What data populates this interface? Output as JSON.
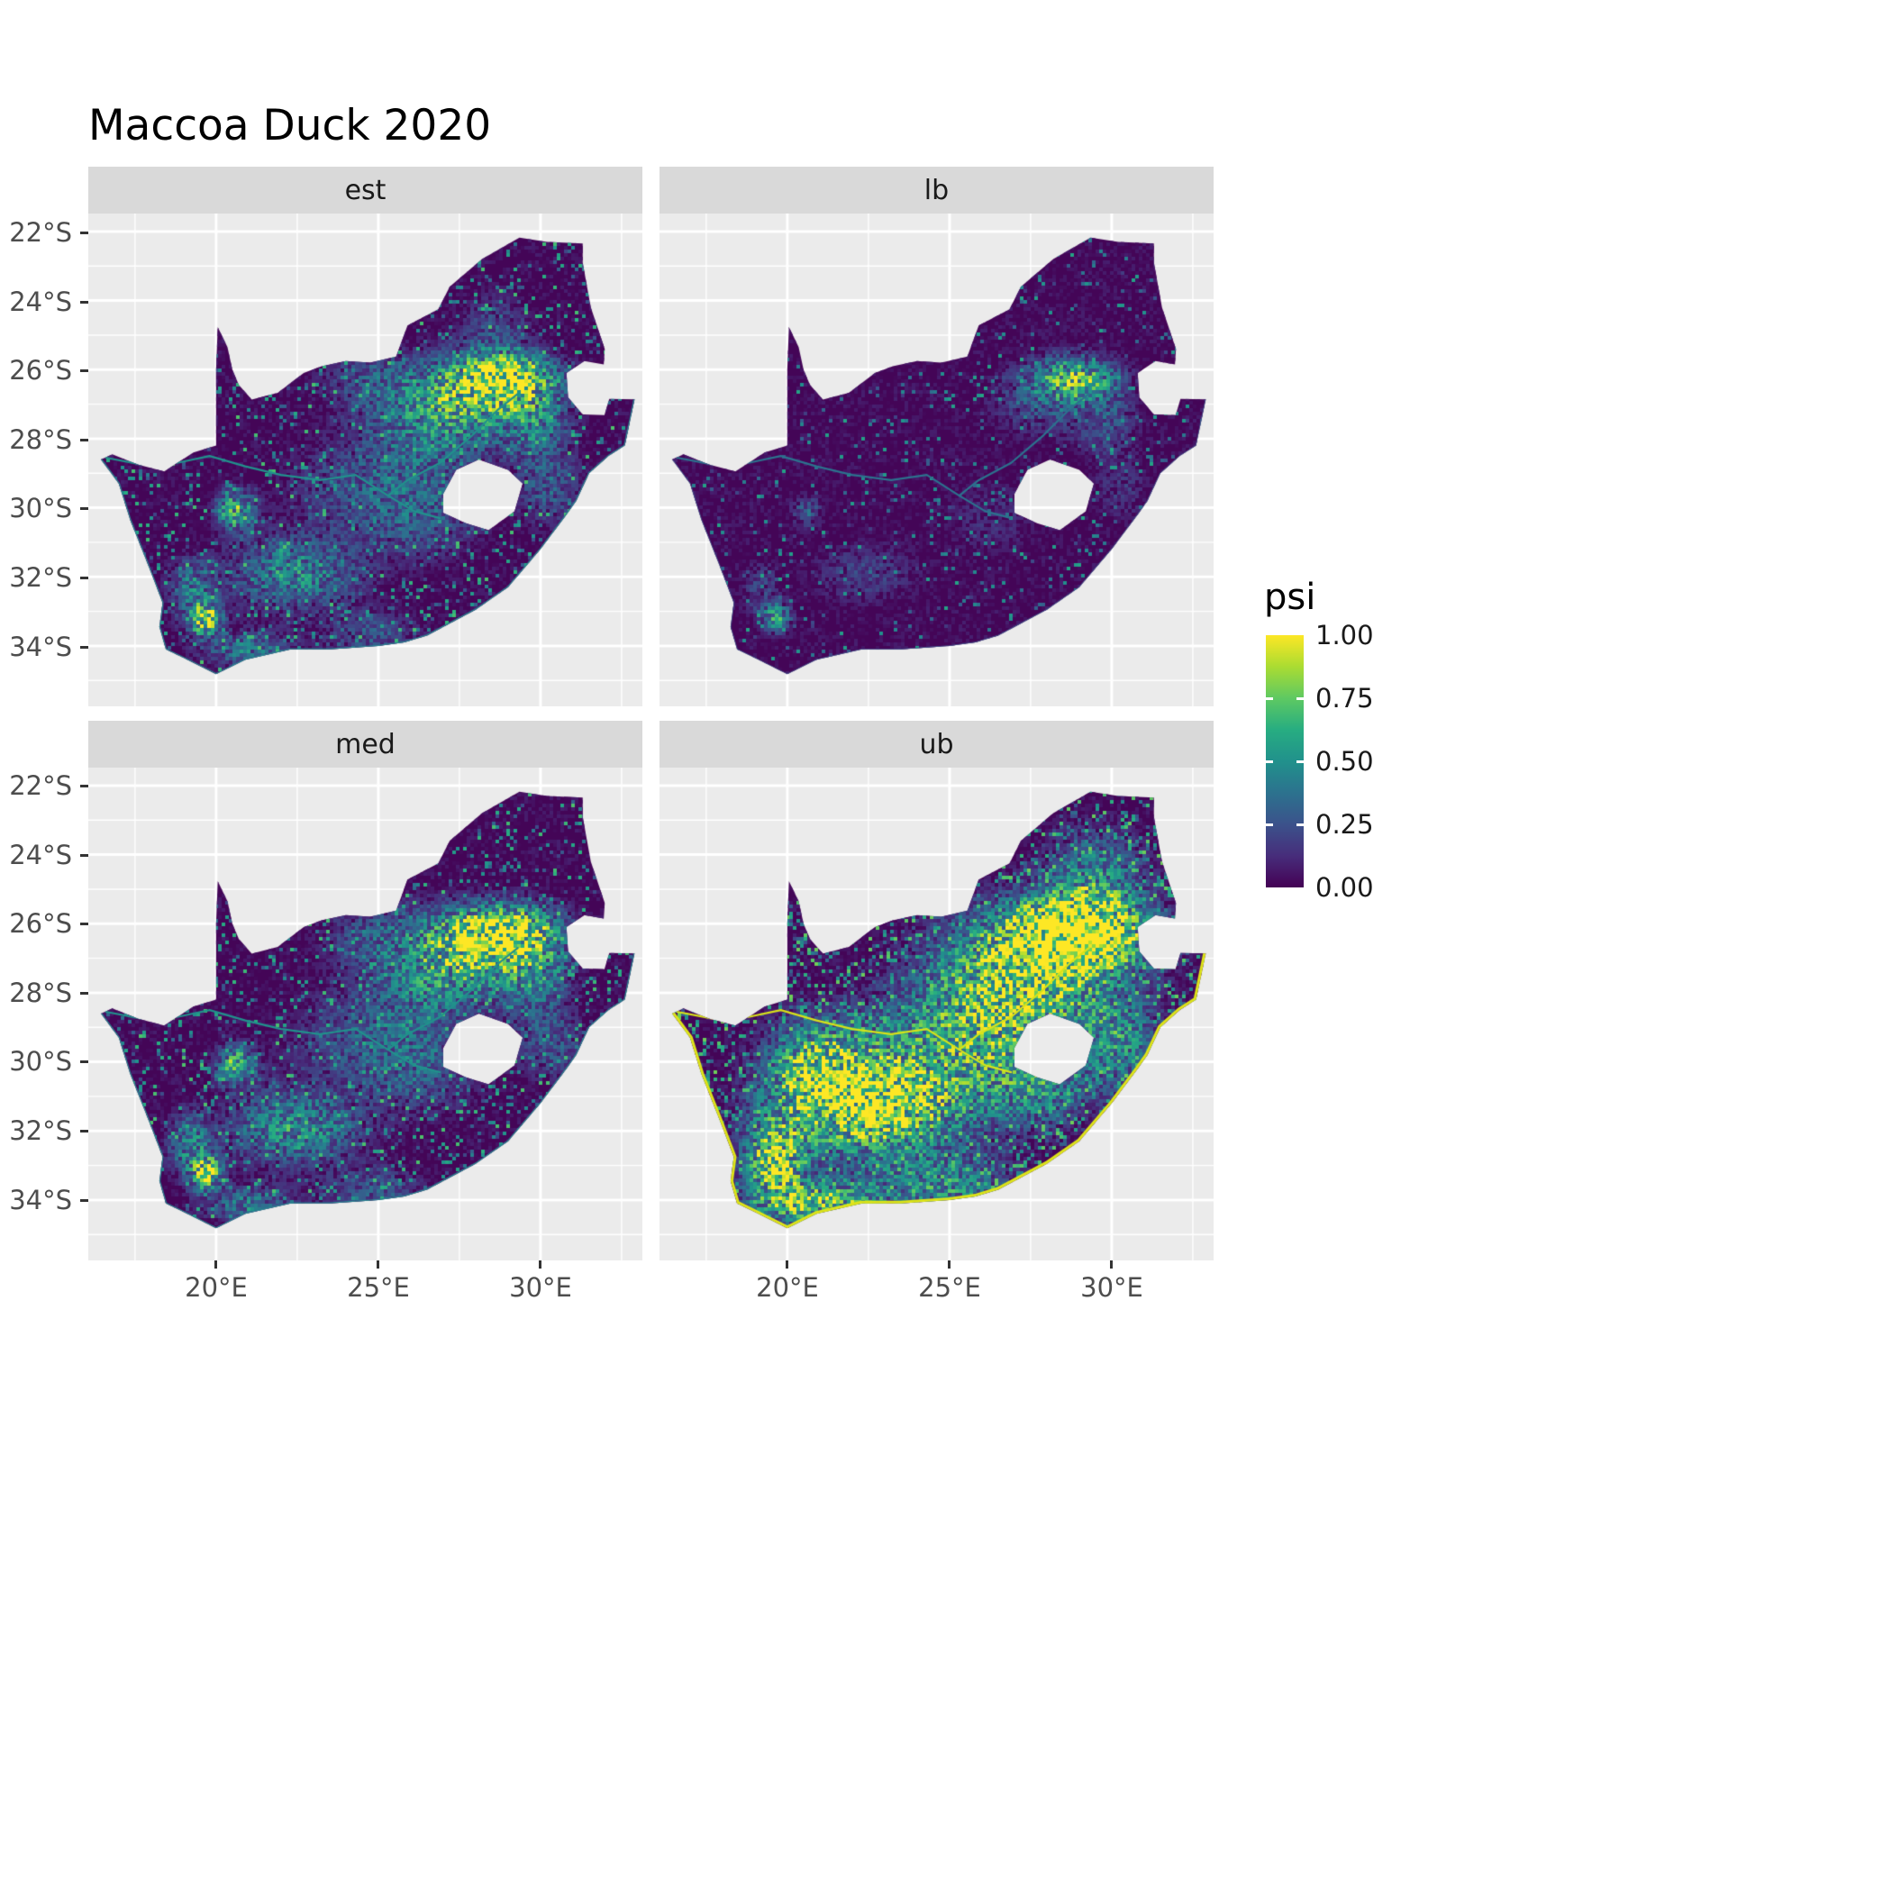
{
  "title": "Maccoa Duck 2020",
  "colors": {
    "panel_bg": "#EBEBEB",
    "strip_bg": "#D9D9D9",
    "grid": "#FFFFFF",
    "tick": "#333333",
    "axis_text": "#4D4D4D",
    "text": "#000000",
    "raster_base": "#440154"
  },
  "chart_data": {
    "type": "heatmap",
    "title": "Maccoa Duck 2020",
    "region": "South Africa",
    "variable": "psi",
    "lon_range": [
      16.06,
      33.14
    ],
    "lat_range": [
      -35.75,
      -21.48
    ],
    "x": {
      "tick_values": [
        20,
        25,
        30
      ],
      "tick_labels": [
        "20°E",
        "25°E",
        "30°E"
      ]
    },
    "y": {
      "tick_values": [
        -22,
        -24,
        -26,
        -28,
        -30,
        -32,
        -34
      ],
      "tick_labels": [
        "22°S",
        "24°S",
        "26°S",
        "28°S",
        "30°S",
        "32°S",
        "34°S"
      ]
    },
    "grid": {
      "major_lon": [
        20,
        25,
        30
      ],
      "minor_lon": [
        17.5,
        22.5,
        27.5,
        32.5
      ],
      "major_lat": [
        -22,
        -24,
        -26,
        -28,
        -30,
        -32,
        -34
      ],
      "minor_lat": [
        -23,
        -25,
        -27,
        -29,
        -31,
        -33,
        -35
      ]
    },
    "color_scale": {
      "name": "viridis",
      "title": "psi",
      "range": [
        0,
        1
      ],
      "breaks": [
        1.0,
        0.75,
        0.5,
        0.25,
        0.0
      ],
      "labels": [
        "1.00",
        "0.75",
        "0.50",
        "0.25",
        "0.00"
      ],
      "stops": [
        [
          0,
          "#440154"
        ],
        [
          0.125,
          "#472D7B"
        ],
        [
          0.25,
          "#3B528B"
        ],
        [
          0.375,
          "#2C728E"
        ],
        [
          0.5,
          "#21918C"
        ],
        [
          0.625,
          "#27AD81"
        ],
        [
          0.75,
          "#5EC962"
        ],
        [
          0.875,
          "#AADC32"
        ],
        [
          1,
          "#FDE725"
        ]
      ]
    },
    "facets": [
      {
        "label": "est",
        "speckle_p": 0.1,
        "speckle_amp": 0.55,
        "river_color": "#21918C",
        "coast_color": "#27808E",
        "coast_width": 2.5,
        "hotspots": [
          [
            28.9,
            -26.25,
            1.3,
            0.6,
            1.05
          ],
          [
            28.0,
            -26.9,
            1.8,
            1.0,
            0.5
          ],
          [
            29.9,
            -27.6,
            0.9,
            0.9,
            0.4
          ],
          [
            26.6,
            -27.8,
            1.6,
            1.2,
            0.35
          ],
          [
            25.0,
            -26.3,
            1.6,
            0.9,
            0.28
          ],
          [
            26.3,
            -30.3,
            1.6,
            1.1,
            0.3
          ],
          [
            24.3,
            -29.3,
            2.0,
            1.2,
            0.25
          ],
          [
            22.4,
            -31.9,
            1.7,
            0.9,
            0.55
          ],
          [
            20.6,
            -30.1,
            0.5,
            0.5,
            0.8
          ],
          [
            19.7,
            -33.2,
            0.4,
            0.4,
            1.0
          ],
          [
            19.2,
            -32.4,
            0.6,
            0.8,
            0.45
          ],
          [
            20.9,
            -34.1,
            1.2,
            0.45,
            0.45
          ],
          [
            24.9,
            -33.7,
            1.3,
            0.6,
            0.3
          ],
          [
            30.3,
            -29.5,
            0.9,
            0.9,
            0.32
          ],
          [
            28.6,
            -24.8,
            1.0,
            0.9,
            0.25
          ]
        ]
      },
      {
        "label": "lb",
        "speckle_p": 0.055,
        "speckle_amp": 0.45,
        "river_color": "#2C728E",
        "coast_color": "#3B528B",
        "coast_width": 1.5,
        "hotspots": [
          [
            28.9,
            -26.25,
            1.1,
            0.55,
            0.75
          ],
          [
            28.0,
            -26.9,
            1.5,
            0.9,
            0.3
          ],
          [
            29.9,
            -27.6,
            0.8,
            0.8,
            0.25
          ],
          [
            26.3,
            -30.3,
            1.4,
            1.0,
            0.15
          ],
          [
            22.4,
            -31.9,
            1.5,
            0.8,
            0.22
          ],
          [
            20.6,
            -30.1,
            0.4,
            0.4,
            0.35
          ],
          [
            19.7,
            -33.2,
            0.35,
            0.35,
            0.7
          ],
          [
            19.2,
            -32.4,
            0.5,
            0.7,
            0.25
          ],
          [
            30.3,
            -29.5,
            0.8,
            0.8,
            0.18
          ]
        ]
      },
      {
        "label": "med",
        "speckle_p": 0.11,
        "speckle_amp": 0.55,
        "river_color": "#21918C",
        "coast_color": "#27808E",
        "coast_width": 2.5,
        "hotspots": [
          [
            28.9,
            -26.25,
            1.45,
            0.68,
            1.1
          ],
          [
            28.0,
            -26.9,
            1.8,
            1.0,
            0.55
          ],
          [
            29.9,
            -27.6,
            0.9,
            0.9,
            0.4
          ],
          [
            26.6,
            -27.8,
            1.6,
            1.2,
            0.35
          ],
          [
            25.0,
            -26.3,
            1.6,
            0.9,
            0.28
          ],
          [
            26.3,
            -30.3,
            1.6,
            1.1,
            0.3
          ],
          [
            24.3,
            -29.3,
            2.0,
            1.2,
            0.27
          ],
          [
            22.4,
            -31.9,
            1.7,
            0.9,
            0.6
          ],
          [
            20.6,
            -30.1,
            0.5,
            0.5,
            0.8
          ],
          [
            19.7,
            -33.2,
            0.4,
            0.4,
            1.0
          ],
          [
            19.2,
            -32.4,
            0.6,
            0.8,
            0.5
          ],
          [
            20.9,
            -34.1,
            1.2,
            0.45,
            0.45
          ],
          [
            24.9,
            -33.7,
            1.3,
            0.6,
            0.3
          ],
          [
            30.3,
            -29.5,
            0.9,
            0.9,
            0.32
          ]
        ]
      },
      {
        "label": "ub",
        "speckle_p": 0.22,
        "speckle_amp": 0.6,
        "river_color": "#D8E219",
        "coast_color": "#DDE318",
        "coast_width": 6,
        "hotspots": [
          [
            28.9,
            -26.3,
            1.8,
            0.9,
            1.4
          ],
          [
            27.4,
            -27.4,
            2.4,
            1.5,
            0.85
          ],
          [
            29.5,
            -24.6,
            1.3,
            1.2,
            0.5
          ],
          [
            25.6,
            -29.2,
            2.4,
            1.5,
            0.6
          ],
          [
            22.8,
            -31.3,
            2.4,
            1.3,
            1.1
          ],
          [
            21.0,
            -30.2,
            1.4,
            1.2,
            0.8
          ],
          [
            19.6,
            -32.9,
            0.8,
            1.0,
            1.0
          ],
          [
            21.0,
            -34.1,
            1.6,
            0.5,
            0.9
          ],
          [
            24.9,
            -33.6,
            1.8,
            0.7,
            0.55
          ],
          [
            30.2,
            -29.4,
            1.1,
            1.1,
            0.5
          ],
          [
            27.8,
            -30.8,
            1.4,
            1.0,
            0.45
          ]
        ]
      }
    ],
    "basemap": {
      "coast_end": 23,
      "outline": [
        [
          16.45,
          -28.6
        ],
        [
          17.0,
          -29.3
        ],
        [
          17.35,
          -30.35
        ],
        [
          17.9,
          -31.65
        ],
        [
          18.35,
          -32.75
        ],
        [
          18.25,
          -33.45
        ],
        [
          18.45,
          -34.1
        ],
        [
          19.0,
          -34.35
        ],
        [
          20.0,
          -34.82
        ],
        [
          20.9,
          -34.4
        ],
        [
          22.3,
          -34.1
        ],
        [
          23.5,
          -34.1
        ],
        [
          25.0,
          -34.0
        ],
        [
          25.8,
          -33.9
        ],
        [
          26.5,
          -33.7
        ],
        [
          28.0,
          -32.95
        ],
        [
          29.0,
          -32.3
        ],
        [
          30.0,
          -31.2
        ],
        [
          30.8,
          -30.2
        ],
        [
          31.1,
          -29.8
        ],
        [
          31.5,
          -29.0
        ],
        [
          32.1,
          -28.5
        ],
        [
          32.6,
          -28.2
        ],
        [
          32.9,
          -26.86
        ],
        [
          32.12,
          -26.85
        ],
        [
          31.97,
          -27.32
        ],
        [
          31.3,
          -27.3
        ],
        [
          30.85,
          -26.8
        ],
        [
          30.8,
          -26.1
        ],
        [
          31.35,
          -25.75
        ],
        [
          31.95,
          -25.85
        ],
        [
          31.98,
          -25.4
        ],
        [
          31.55,
          -24.2
        ],
        [
          31.3,
          -22.9
        ],
        [
          31.3,
          -22.35
        ],
        [
          30.2,
          -22.3
        ],
        [
          29.35,
          -22.18
        ],
        [
          28.2,
          -22.8
        ],
        [
          27.2,
          -23.6
        ],
        [
          26.85,
          -24.25
        ],
        [
          25.9,
          -24.72
        ],
        [
          25.55,
          -25.62
        ],
        [
          24.75,
          -25.8
        ],
        [
          24.0,
          -25.75
        ],
        [
          23.25,
          -25.9
        ],
        [
          22.7,
          -26.1
        ],
        [
          21.9,
          -26.67
        ],
        [
          21.1,
          -26.87
        ],
        [
          20.7,
          -26.44
        ],
        [
          20.5,
          -26.0
        ],
        [
          20.35,
          -25.35
        ],
        [
          20.05,
          -24.77
        ],
        [
          20.0,
          -26.0
        ],
        [
          20.0,
          -27.2
        ],
        [
          20.0,
          -28.2
        ],
        [
          19.3,
          -28.4
        ],
        [
          18.4,
          -28.95
        ],
        [
          17.6,
          -28.75
        ],
        [
          16.8,
          -28.45
        ]
      ],
      "lesotho": [
        [
          27.0,
          -29.6
        ],
        [
          27.4,
          -28.9
        ],
        [
          28.1,
          -28.6
        ],
        [
          29.0,
          -28.9
        ],
        [
          29.45,
          -29.3
        ],
        [
          29.2,
          -30.1
        ],
        [
          28.4,
          -30.65
        ],
        [
          27.7,
          -30.45
        ],
        [
          27.0,
          -30.15
        ]
      ],
      "rivers": [
        [
          [
            16.6,
            -28.55
          ],
          [
            17.7,
            -28.75
          ],
          [
            18.8,
            -28.7
          ],
          [
            19.8,
            -28.5
          ],
          [
            20.9,
            -28.8
          ],
          [
            22.0,
            -29.05
          ],
          [
            23.2,
            -29.2
          ],
          [
            24.3,
            -29.05
          ],
          [
            25.3,
            -29.65
          ],
          [
            26.1,
            -30.1
          ],
          [
            26.9,
            -30.3
          ]
        ],
        [
          [
            25.3,
            -29.65
          ],
          [
            25.9,
            -29.2
          ],
          [
            26.9,
            -28.7
          ],
          [
            27.9,
            -27.9
          ],
          [
            28.7,
            -27.15
          ],
          [
            29.3,
            -26.7
          ]
        ]
      ]
    }
  }
}
